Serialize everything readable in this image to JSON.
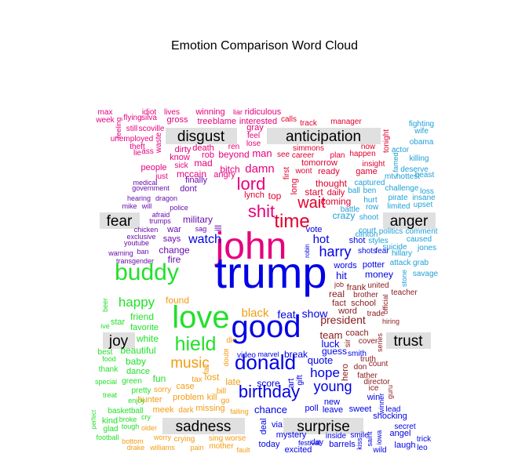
{
  "chart_data": {
    "type": "wordcloud",
    "title": "Emotion Comparison Word Cloud",
    "groups": [
      {
        "name": "disgust",
        "color": "#e6007e",
        "words": [
          "john",
          "shit",
          "lord",
          "damn",
          "bitch",
          "mad",
          "dirty",
          "death",
          "rob",
          "beyond",
          "man",
          "ren",
          "lose",
          "feel",
          "gray",
          "liar",
          "ridiculous",
          "winning",
          "lives",
          "idiot",
          "max",
          "week",
          "flying",
          "silva",
          "gross",
          "tree",
          "blame",
          "interested",
          "still",
          "scoville",
          "unemployed",
          "theft",
          "lie",
          "ass",
          "waste",
          "know",
          "sick",
          "people",
          "just",
          "mccain",
          "angry",
          "feeling"
        ]
      },
      {
        "name": "anticipation",
        "color": "#e0002d",
        "words": [
          "time",
          "wait",
          "long",
          "top",
          "lynch",
          "start",
          "daily",
          "thought",
          "coming",
          "ready",
          "wont",
          "first",
          "tomorrow",
          "see",
          "career",
          "simmons",
          "plan",
          "happen",
          "now",
          "tonight",
          "game",
          "insight",
          "calls",
          "track",
          "manager"
        ]
      },
      {
        "name": "anger",
        "color": "#1fa0d8",
        "words": [
          "fighting",
          "wife",
          "obama",
          "killing",
          "actor",
          "famed",
          "deserve",
          "beast",
          "challenge",
          "loss",
          "pirate",
          "insane",
          "limited",
          "upset",
          "captured",
          "ben",
          "hurt",
          "row",
          "court",
          "politics",
          "comment",
          "caused",
          "suicide",
          "jones",
          "hillary",
          "attack",
          "grab",
          "stone",
          "savage",
          "shoot",
          "insane",
          "styles",
          "clinton",
          "mtv",
          "hottest",
          "crazy",
          "battle",
          "ball"
        ]
      },
      {
        "name": "fear",
        "color": "#6a0dad",
        "words": [
          "military",
          "war",
          "change",
          "fire",
          "government",
          "medical",
          "hearing",
          "dragon",
          "mike",
          "afraid",
          "trumps",
          "police",
          "chicken",
          "exclusive",
          "youtube",
          "ban",
          "warning",
          "transgender",
          "says",
          "sag",
          "finally",
          "dont",
          "ill",
          "will"
        ]
      },
      {
        "name": "trust",
        "color": "#8b1a1a",
        "words": [
          "president",
          "team",
          "coach",
          "real",
          "frank",
          "brother",
          "school",
          "fact",
          "word",
          "trade",
          "united",
          "teacher",
          "official",
          "hiring",
          "cover",
          "series",
          "truth",
          "don",
          "count",
          "father",
          "director",
          "ice",
          "guru",
          "job",
          "sir",
          "hero"
        ]
      },
      {
        "name": "joy",
        "color": "#22e02a",
        "words": [
          "buddy",
          "love",
          "hield",
          "happy",
          "friend",
          "favorite",
          "white",
          "beautiful",
          "baby",
          "dance",
          "fun",
          "star",
          "beer",
          "ive",
          "best",
          "food",
          "thank",
          "special",
          "green",
          "pretty",
          "enjoy",
          "treat",
          "kind",
          "glad",
          "football",
          "perfect",
          "basketball",
          "cry",
          "tough",
          "broke"
        ]
      },
      {
        "name": "sadness",
        "color": "#f39c12",
        "words": [
          "black",
          "music",
          "found",
          "late",
          "case",
          "lost",
          "fall",
          "tax",
          "bill",
          "kill",
          "problem",
          "missing",
          "dark",
          "meek",
          "worry",
          "crying",
          "older",
          "bottom",
          "drake",
          "williams",
          "pain",
          "mother",
          "fault",
          "worse",
          "sing",
          "falling",
          "die",
          "doubt",
          "hunter",
          "sorry",
          "go"
        ]
      },
      {
        "name": "surprise",
        "color": "#0000e6",
        "words": [
          "trump",
          "good",
          "donald",
          "birthday",
          "feat",
          "show",
          "young",
          "hope",
          "quote",
          "guess",
          "smith",
          "luck",
          "break",
          "marvel",
          "video",
          "score",
          "chance",
          "deal",
          "via",
          "mystery",
          "excited",
          "today",
          "festival",
          "day",
          "inside",
          "barrels",
          "kiss",
          "smile",
          "saint",
          "iowa",
          "wild",
          "laugh",
          "angel",
          "trick",
          "leo",
          "secret",
          "shocking",
          "lead",
          "winner",
          "win",
          "sweet",
          "leave",
          "poll",
          "new",
          "potter",
          "money",
          "harry",
          "watch",
          "vote",
          "hot",
          "shot",
          "shots",
          "fear",
          "words",
          "hit",
          "art",
          "gift",
          "robin"
        ]
      }
    ]
  }
}
